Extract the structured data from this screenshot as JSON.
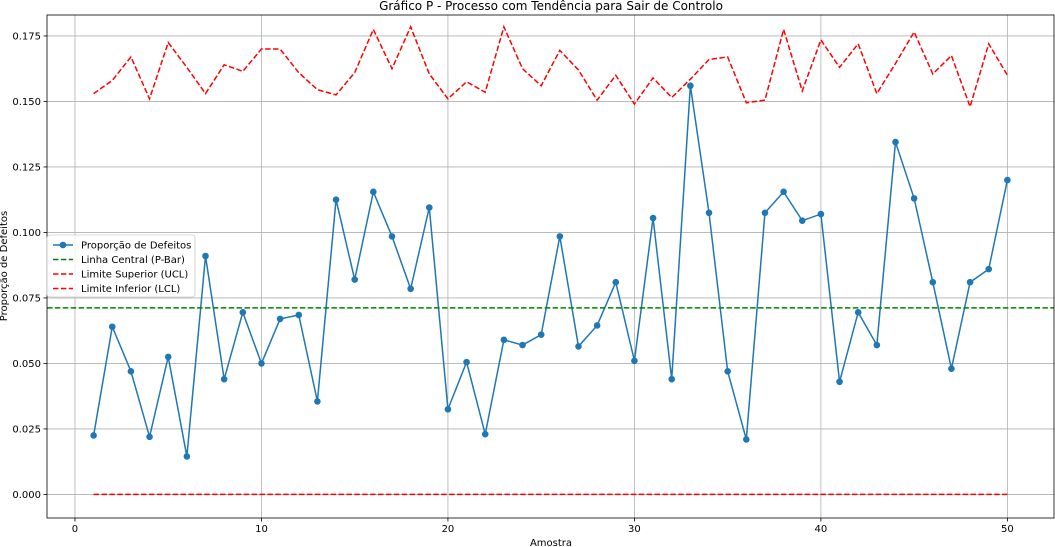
{
  "chart_data": {
    "type": "line",
    "title": "Gráfico P - Processo com Tendência para Sair de Controlo",
    "xlabel": "Amostra",
    "ylabel": "Proporção de Defeitos",
    "xlim": [
      -1.5,
      52.5
    ],
    "ylim": [
      -0.009,
      0.183
    ],
    "xticks": [
      0,
      10,
      20,
      30,
      40,
      50
    ],
    "yticks": [
      0.0,
      0.025,
      0.05,
      0.075,
      0.1,
      0.125,
      0.15,
      0.175
    ],
    "ytick_labels": [
      "0.000",
      "0.025",
      "0.050",
      "0.075",
      "0.100",
      "0.125",
      "0.150",
      "0.175"
    ],
    "grid": true,
    "legend_position": "center-left",
    "x": [
      1,
      2,
      3,
      4,
      5,
      6,
      7,
      8,
      9,
      10,
      11,
      12,
      13,
      14,
      15,
      16,
      17,
      18,
      19,
      20,
      21,
      22,
      23,
      24,
      25,
      26,
      27,
      28,
      29,
      30,
      31,
      32,
      33,
      34,
      35,
      36,
      37,
      38,
      39,
      40,
      41,
      42,
      43,
      44,
      45,
      46,
      47,
      48,
      49,
      50
    ],
    "series": [
      {
        "name": "Proporção de Defeitos",
        "color": "#1f77b4",
        "style": "solid-marker",
        "values": [
          0.0225,
          0.064,
          0.047,
          0.022,
          0.0525,
          0.0145,
          0.091,
          0.044,
          0.0695,
          0.05,
          0.067,
          0.0685,
          0.0355,
          0.1125,
          0.082,
          0.1155,
          0.0985,
          0.0785,
          0.1095,
          0.0325,
          0.0505,
          0.023,
          0.059,
          0.057,
          0.061,
          0.0985,
          0.0565,
          0.0645,
          0.081,
          0.051,
          0.1055,
          0.044,
          0.156,
          0.1075,
          0.047,
          0.021,
          0.1075,
          0.1155,
          0.1045,
          0.107,
          0.043,
          0.0695,
          0.057,
          0.1345,
          0.113,
          0.081,
          0.048,
          0.081,
          0.086,
          0.12
        ]
      },
      {
        "name": "Linha Central (P-Bar)",
        "color": "#008000",
        "style": "dashed-full",
        "value": 0.0712
      },
      {
        "name": "Limite Superior (UCL)",
        "color": "#ff0000",
        "style": "dashed",
        "values": [
          0.153,
          0.158,
          0.167,
          0.151,
          0.1725,
          0.163,
          0.153,
          0.164,
          0.1615,
          0.17,
          0.17,
          0.161,
          0.1545,
          0.1525,
          0.161,
          0.1775,
          0.1625,
          0.1785,
          0.1605,
          0.151,
          0.1575,
          0.1535,
          0.1785,
          0.1625,
          0.156,
          0.1695,
          0.162,
          0.1505,
          0.16,
          0.149,
          0.159,
          0.1515,
          0.1585,
          0.166,
          0.167,
          0.1495,
          0.1505,
          0.1775,
          0.154,
          0.1735,
          0.163,
          0.172,
          0.153,
          0.1645,
          0.1765,
          0.1605,
          0.1675,
          0.148,
          0.172,
          0.16
        ]
      },
      {
        "name": "Limite Inferior (LCL)",
        "color": "#ff0000",
        "style": "dashed",
        "values": [
          0,
          0,
          0,
          0,
          0,
          0,
          0,
          0,
          0,
          0,
          0,
          0,
          0,
          0,
          0,
          0,
          0,
          0,
          0,
          0,
          0,
          0,
          0,
          0,
          0,
          0,
          0,
          0,
          0,
          0,
          0,
          0,
          0,
          0,
          0,
          0,
          0,
          0,
          0,
          0,
          0,
          0,
          0,
          0,
          0,
          0,
          0,
          0,
          0,
          0
        ]
      }
    ]
  }
}
